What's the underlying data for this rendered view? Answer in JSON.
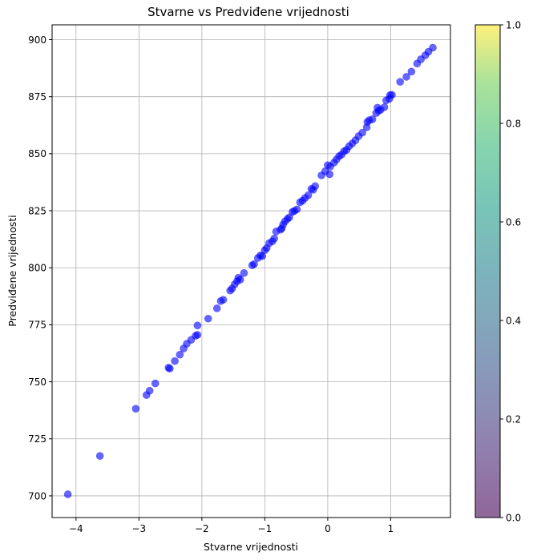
{
  "chart_data": {
    "type": "scatter",
    "title": "Stvarne vs Predviđene vrijednosti",
    "xlabel": "Stvarne vrijednosti",
    "ylabel": "Predviđene vrijednosti",
    "xlim": [
      -4.38,
      1.95
    ],
    "ylim": [
      690.5,
      906.5
    ],
    "x_ticks": [
      -4,
      -3,
      -2,
      -1,
      0,
      1
    ],
    "x_tick_labels": [
      "−4",
      "−3",
      "−2",
      "−1",
      "0",
      "1"
    ],
    "y_ticks": [
      700,
      725,
      750,
      775,
      800,
      825,
      850,
      875,
      900
    ],
    "y_tick_labels": [
      "700",
      "725",
      "750",
      "775",
      "800",
      "825",
      "850",
      "875",
      "900"
    ],
    "grid": true,
    "point_color": "#0000ff",
    "point_alpha": 0.6,
    "colorbar": {
      "range": [
        0,
        1
      ],
      "ticks": [
        0,
        0.2,
        0.4,
        0.6,
        0.8,
        1
      ],
      "tick_labels": [
        "0.0",
        "0.2",
        "0.4",
        "0.6",
        "0.8",
        "1.0"
      ],
      "colormap": "viridis",
      "alpha": 0.6
    },
    "points": [
      [
        -4.13,
        700.7
      ],
      [
        -3.62,
        717.5
      ],
      [
        -3.05,
        738.2
      ],
      [
        -2.88,
        744.2
      ],
      [
        -2.83,
        746.1
      ],
      [
        -2.74,
        749.3
      ],
      [
        -2.53,
        756.2
      ],
      [
        -2.51,
        755.8
      ],
      [
        -2.43,
        759.1
      ],
      [
        -2.35,
        761.9
      ],
      [
        -2.29,
        764.6
      ],
      [
        -2.24,
        766.7
      ],
      [
        -2.17,
        768.4
      ],
      [
        -2.1,
        770.2
      ],
      [
        -2.07,
        770.6
      ],
      [
        -2.07,
        774.7
      ],
      [
        -1.9,
        777.7
      ],
      [
        -1.76,
        782.2
      ],
      [
        -1.7,
        785.4
      ],
      [
        -1.66,
        786.0
      ],
      [
        -1.55,
        790.0
      ],
      [
        -1.52,
        790.9
      ],
      [
        -1.48,
        792.7
      ],
      [
        -1.44,
        794.1
      ],
      [
        -1.42,
        795.6
      ],
      [
        -1.39,
        794.8
      ],
      [
        -1.33,
        797.7
      ],
      [
        -1.2,
        801.1
      ],
      [
        -1.17,
        801.6
      ],
      [
        -1.11,
        804.3
      ],
      [
        -1.07,
        805.4
      ],
      [
        -1.04,
        805.1
      ],
      [
        -1.0,
        807.7
      ],
      [
        -0.97,
        808.6
      ],
      [
        -0.93,
        810.8
      ],
      [
        -0.88,
        811.6
      ],
      [
        -0.85,
        812.8
      ],
      [
        -0.82,
        815.9
      ],
      [
        -0.75,
        816.7
      ],
      [
        -0.73,
        817.3
      ],
      [
        -0.71,
        818.9
      ],
      [
        -0.68,
        820.3
      ],
      [
        -0.64,
        821.4
      ],
      [
        -0.61,
        822.1
      ],
      [
        -0.56,
        824.5
      ],
      [
        -0.53,
        824.9
      ],
      [
        -0.49,
        825.6
      ],
      [
        -0.44,
        828.7
      ],
      [
        -0.4,
        829.4
      ],
      [
        -0.36,
        830.6
      ],
      [
        -0.31,
        831.8
      ],
      [
        -0.26,
        834.6
      ],
      [
        -0.23,
        834.2
      ],
      [
        -0.2,
        835.8
      ],
      [
        -0.1,
        840.5
      ],
      [
        -0.04,
        842.3
      ],
      [
        0.0,
        845.0
      ],
      [
        0.04,
        844.4
      ],
      [
        0.03,
        841.0
      ],
      [
        0.1,
        846.1
      ],
      [
        0.14,
        847.5
      ],
      [
        0.18,
        848.9
      ],
      [
        0.22,
        849.6
      ],
      [
        0.26,
        851.1
      ],
      [
        0.3,
        851.7
      ],
      [
        0.34,
        853.3
      ],
      [
        0.39,
        854.5
      ],
      [
        0.44,
        855.9
      ],
      [
        0.49,
        857.7
      ],
      [
        0.55,
        859.2
      ],
      [
        0.62,
        861.6
      ],
      [
        0.63,
        863.9
      ],
      [
        0.66,
        864.7
      ],
      [
        0.71,
        865.1
      ],
      [
        0.77,
        867.8
      ],
      [
        0.81,
        868.8
      ],
      [
        0.79,
        870.2
      ],
      [
        0.84,
        869.3
      ],
      [
        0.9,
        870.4
      ],
      [
        0.93,
        873.4
      ],
      [
        0.98,
        874.1
      ],
      [
        0.99,
        875.7
      ],
      [
        1.02,
        875.8
      ],
      [
        1.15,
        881.5
      ],
      [
        1.25,
        883.7
      ],
      [
        1.33,
        886.0
      ],
      [
        1.42,
        889.5
      ],
      [
        1.48,
        891.4
      ],
      [
        1.55,
        893.1
      ],
      [
        1.6,
        894.7
      ],
      [
        1.67,
        896.5
      ]
    ]
  }
}
